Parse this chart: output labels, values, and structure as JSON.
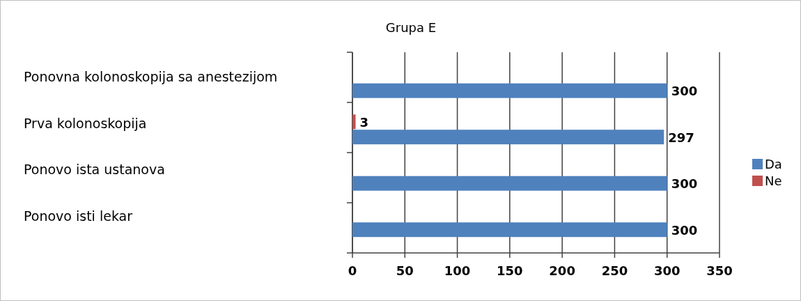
{
  "chart_data": {
    "type": "bar",
    "title": "Grupa E",
    "orientation": "horizontal",
    "categories": [
      "Ponovna kolonoskopija sa anestezijom",
      "Prva kolonoskopija",
      "Ponovo ista ustanova",
      "Ponovo isti lekar"
    ],
    "series": [
      {
        "name": "Da",
        "color": "#4f81bd",
        "values": [
          300,
          297,
          300,
          300
        ],
        "value_labels": [
          "300",
          "297",
          "300",
          "300"
        ]
      },
      {
        "name": "Ne",
        "color": "#c0504d",
        "values": [
          null,
          3,
          null,
          null
        ],
        "value_labels": [
          null,
          "3",
          null,
          null
        ]
      }
    ],
    "xlim": [
      0,
      350
    ],
    "xticks": [
      0,
      50,
      100,
      150,
      200,
      250,
      300,
      350
    ],
    "grid": "x",
    "legend": "right"
  }
}
